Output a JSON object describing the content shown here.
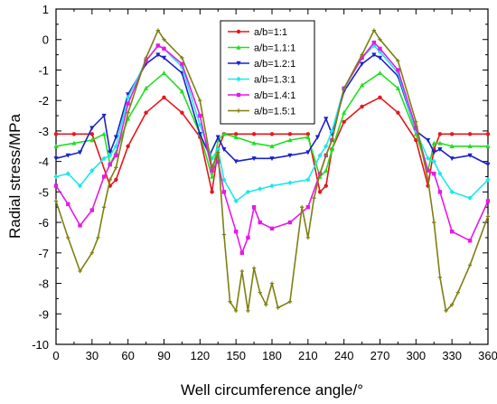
{
  "chart_data": {
    "type": "line",
    "title": "",
    "xlabel": "Well circumference angle/°",
    "ylabel": "Radial stress/MPa",
    "xlim": [
      0,
      360
    ],
    "ylim": [
      -10,
      1
    ],
    "xticks": [
      0,
      30,
      60,
      90,
      120,
      150,
      180,
      210,
      240,
      270,
      300,
      330,
      360
    ],
    "yticks": [
      -10,
      -9,
      -8,
      -7,
      -6,
      -5,
      -4,
      -3,
      -2,
      -1,
      0,
      1
    ],
    "grid": false,
    "legend_position": "top-center",
    "series": [
      {
        "name": "a/b=1:1",
        "color": "#e8151b",
        "marker": "circle",
        "x": [
          0,
          15,
          30,
          45,
          50,
          60,
          75,
          90,
          105,
          120,
          130,
          135,
          140,
          150,
          165,
          180,
          195,
          210,
          220,
          225,
          230,
          240,
          255,
          270,
          285,
          300,
          310,
          315,
          320,
          330,
          345,
          360
        ],
        "y": [
          -3.1,
          -3.1,
          -3.1,
          -4.8,
          -4.6,
          -3.5,
          -2.4,
          -1.9,
          -2.4,
          -3.2,
          -5.0,
          -3.6,
          -3.1,
          -3.1,
          -3.1,
          -3.1,
          -3.1,
          -3.1,
          -5.0,
          -4.8,
          -3.6,
          -2.7,
          -2.2,
          -1.9,
          -2.4,
          -3.3,
          -4.8,
          -3.6,
          -3.1,
          -3.1,
          -3.1,
          -3.1
        ]
      },
      {
        "name": "a/b=1.1:1",
        "color": "#1fe01f",
        "marker": "triangle",
        "x": [
          0,
          15,
          30,
          40,
          45,
          50,
          60,
          75,
          90,
          105,
          120,
          130,
          135,
          140,
          150,
          165,
          180,
          195,
          210,
          220,
          225,
          230,
          240,
          255,
          270,
          285,
          300,
          310,
          315,
          320,
          330,
          345,
          360
        ],
        "y": [
          -3.5,
          -3.4,
          -3.3,
          -3.1,
          -4.1,
          -3.7,
          -2.6,
          -1.6,
          -1.1,
          -1.7,
          -3.1,
          -4.5,
          -3.3,
          -3.1,
          -3.2,
          -3.4,
          -3.5,
          -3.3,
          -3.2,
          -4.5,
          -4.3,
          -3.6,
          -2.4,
          -1.5,
          -1.1,
          -1.6,
          -3.1,
          -4.3,
          -3.4,
          -3.4,
          -3.5,
          -3.5,
          -3.5
        ]
      },
      {
        "name": "a/b=1.2:1",
        "color": "#1a22c9",
        "marker": "triangle-down",
        "x": [
          0,
          10,
          20,
          30,
          40,
          45,
          50,
          60,
          75,
          85,
          90,
          105,
          120,
          128,
          135,
          140,
          150,
          165,
          180,
          195,
          210,
          218,
          225,
          230,
          240,
          255,
          265,
          270,
          285,
          300,
          310,
          315,
          320,
          330,
          345,
          360
        ],
        "y": [
          -3.9,
          -3.8,
          -3.7,
          -2.9,
          -2.5,
          -3.7,
          -3.2,
          -1.8,
          -0.8,
          -0.5,
          -0.6,
          -1.1,
          -3.1,
          -3.8,
          -3.2,
          -3.6,
          -4.0,
          -3.9,
          -3.9,
          -3.8,
          -3.7,
          -3.2,
          -2.6,
          -3.1,
          -1.7,
          -0.8,
          -0.5,
          -0.6,
          -1.2,
          -3.0,
          -3.3,
          -3.7,
          -3.6,
          -3.9,
          -3.8,
          -4.1
        ]
      },
      {
        "name": "a/b=1.3:1",
        "color": "#1ee8e8",
        "marker": "diamond",
        "x": [
          0,
          10,
          20,
          30,
          40,
          45,
          50,
          60,
          75,
          85,
          90,
          105,
          120,
          130,
          135,
          140,
          150,
          160,
          170,
          180,
          195,
          210,
          220,
          225,
          230,
          240,
          255,
          265,
          270,
          285,
          300,
          310,
          315,
          320,
          330,
          345,
          360
        ],
        "y": [
          -4.5,
          -4.4,
          -4.8,
          -4.3,
          -3.9,
          -3.8,
          -3.5,
          -1.9,
          -0.7,
          -0.2,
          -0.3,
          -0.9,
          -2.8,
          -3.9,
          -3.6,
          -4.6,
          -5.3,
          -5.0,
          -4.9,
          -4.8,
          -4.7,
          -4.6,
          -3.8,
          -3.5,
          -3.0,
          -1.6,
          -0.6,
          -0.2,
          -0.4,
          -1.1,
          -3.0,
          -3.9,
          -4.0,
          -4.4,
          -5.0,
          -5.2,
          -4.6
        ]
      },
      {
        "name": "a/b=1.4:1",
        "color": "#e619e6",
        "marker": "square",
        "x": [
          0,
          10,
          20,
          30,
          40,
          45,
          50,
          60,
          75,
          85,
          90,
          105,
          120,
          130,
          135,
          140,
          150,
          155,
          160,
          165,
          170,
          180,
          195,
          210,
          220,
          225,
          230,
          240,
          255,
          265,
          270,
          285,
          300,
          310,
          315,
          320,
          330,
          345,
          360
        ],
        "y": [
          -4.8,
          -5.4,
          -6.1,
          -5.6,
          -4.5,
          -4.1,
          -3.8,
          -2.1,
          -0.7,
          -0.2,
          -0.3,
          -0.8,
          -2.5,
          -4.3,
          -4.0,
          -5.0,
          -6.3,
          -7.0,
          -6.5,
          -5.5,
          -6.0,
          -6.2,
          -6.0,
          -5.5,
          -4.4,
          -3.8,
          -3.3,
          -1.6,
          -0.6,
          -0.1,
          -0.3,
          -1.0,
          -2.9,
          -4.3,
          -4.4,
          -5.0,
          -6.3,
          -6.6,
          -5.3
        ]
      },
      {
        "name": "a/b=1.5:1",
        "color": "#7f7f11",
        "marker": "plus",
        "x": [
          0,
          10,
          20,
          30,
          35,
          40,
          45,
          50,
          60,
          75,
          85,
          90,
          105,
          120,
          130,
          135,
          140,
          145,
          150,
          155,
          160,
          165,
          170,
          175,
          180,
          185,
          195,
          205,
          210,
          215,
          220,
          225,
          230,
          240,
          255,
          265,
          270,
          285,
          300,
          310,
          315,
          320,
          325,
          330,
          335,
          345,
          360
        ],
        "y": [
          -5.3,
          -6.5,
          -7.6,
          -7.0,
          -6.5,
          -5.5,
          -4.6,
          -4.2,
          -2.4,
          -0.6,
          0.3,
          0.0,
          -0.6,
          -2.0,
          -4.2,
          -3.7,
          -6.4,
          -8.6,
          -8.9,
          -7.6,
          -8.9,
          -7.5,
          -8.3,
          -8.7,
          -8.0,
          -8.8,
          -8.6,
          -5.5,
          -6.5,
          -5.2,
          -4.4,
          -3.8,
          -3.3,
          -1.6,
          -0.5,
          0.3,
          0.0,
          -0.7,
          -2.7,
          -4.6,
          -6.0,
          -7.8,
          -8.9,
          -8.7,
          -8.3,
          -7.4,
          -5.8
        ]
      }
    ]
  }
}
